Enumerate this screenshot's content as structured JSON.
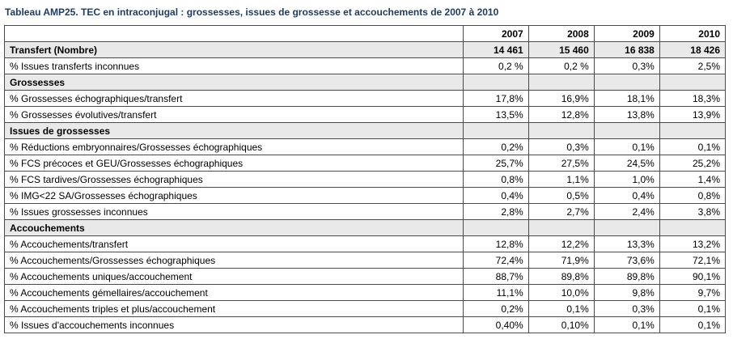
{
  "caption": "Tableau AMP25. TEC en intraconjugal : grossesses, issues de grossesse et accouchements de 2007 à 2010",
  "header": {
    "label": "",
    "years": [
      "2007",
      "2008",
      "2009",
      "2010"
    ]
  },
  "rows": [
    {
      "kind": "transfer",
      "label": "Transfert (Nombre)",
      "values": [
        "14 461",
        "15 460",
        "16 838",
        "18 426"
      ]
    },
    {
      "kind": "plain",
      "label": "% Issues transferts inconnues",
      "values": [
        "0,2 %",
        "0,2 %",
        "0,3%",
        "2,5%"
      ]
    },
    {
      "kind": "section",
      "label": "Grossesses",
      "values": [
        "",
        "",
        "",
        ""
      ]
    },
    {
      "kind": "plain",
      "label": "% Grossesses échographiques/transfert",
      "values": [
        "17,8%",
        "16,9%",
        "18,1%",
        "18,3%"
      ]
    },
    {
      "kind": "plain",
      "label": "% Grossesses évolutives/transfert",
      "values": [
        "13,5%",
        "12,8%",
        "13,8%",
        "13,9%"
      ]
    },
    {
      "kind": "section",
      "label": "Issues de grossesses",
      "values": [
        "",
        "",
        "",
        ""
      ]
    },
    {
      "kind": "plain",
      "label": "% Réductions embryonnaires/Grossesses échographiques",
      "values": [
        "0,2%",
        "0,3%",
        "0,1%",
        "0,1%"
      ]
    },
    {
      "kind": "plain",
      "label": "% FCS précoces et GEU/Grossesses échographiques",
      "values": [
        "25,7%",
        "27,5%",
        "24,5%",
        "25,2%"
      ]
    },
    {
      "kind": "plain",
      "label": "% FCS tardives/Grossesses échographiques",
      "values": [
        "0,8%",
        "1,1%",
        "1,0%",
        "1,4%"
      ]
    },
    {
      "kind": "plain",
      "label": "% IMG<22 SA/Grossesses échographiques",
      "values": [
        "0,4%",
        "0,5%",
        "0,4%",
        "0,8%"
      ]
    },
    {
      "kind": "plain",
      "label": "% Issues grossesses inconnues",
      "values": [
        "2,8%",
        "2,7%",
        "2,4%",
        "3,8%"
      ]
    },
    {
      "kind": "section",
      "label": "Accouchements",
      "values": [
        "",
        "",
        "",
        ""
      ]
    },
    {
      "kind": "plain",
      "label": "% Accouchements/transfert",
      "values": [
        "12,8%",
        "12,2%",
        "13,3%",
        "13,2%"
      ]
    },
    {
      "kind": "plain",
      "label": "% Accouchements/Grossesses échographiques",
      "values": [
        "72,4%",
        "71,9%",
        "73,6%",
        "72,1%"
      ]
    },
    {
      "kind": "plain",
      "label": "% Accouchements uniques/accouchement",
      "values": [
        "88,7%",
        "89,8%",
        "89,8%",
        "90,1%"
      ]
    },
    {
      "kind": "plain",
      "label": "% Accouchements gémellaires/accouchement",
      "values": [
        "11,1%",
        "10,0%",
        "9,8%",
        "9,7%"
      ]
    },
    {
      "kind": "plain",
      "label": "% Accouchements triples et plus/accouchement",
      "values": [
        "0,2%",
        "0,1%",
        "0,3%",
        "0,1%"
      ]
    },
    {
      "kind": "plain",
      "label": "% Issues d'accouchements inconnues",
      "values": [
        "0,40%",
        "0,10%",
        "0,1%",
        "0,1%"
      ]
    }
  ]
}
